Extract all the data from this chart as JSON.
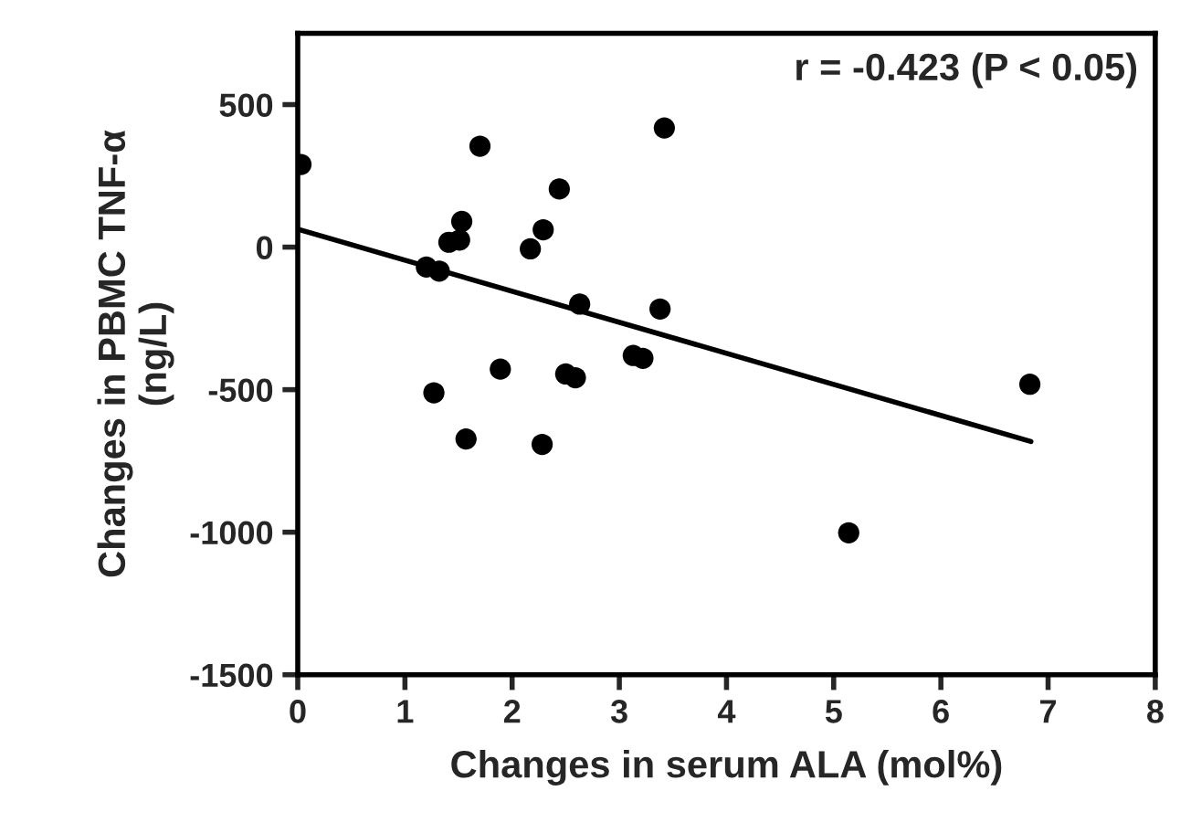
{
  "chart_data": {
    "type": "scatter",
    "xlabel": "Changes in serum ALA (mol%)",
    "ylabel": "Changes in PBMC TNF-α\n(ng/L)",
    "xlim": [
      0,
      8
    ],
    "xticks": [
      0,
      1,
      2,
      3,
      4,
      5,
      6,
      7,
      8
    ],
    "ylim": [
      -1500,
      750
    ],
    "yticks": [
      -1500,
      -1000,
      -500,
      0,
      500
    ],
    "grid": false,
    "marker": "circle",
    "annotations": [
      {
        "text": "r = -0.423 (P < 0.05)"
      }
    ],
    "series": [
      {
        "color": "#000000",
        "x": [
          0.03,
          1.7,
          3.42,
          2.44,
          1.53,
          1.41,
          1.51,
          2.29,
          2.17,
          1.2,
          1.32,
          2.63,
          3.38,
          3.13,
          3.22,
          1.89,
          2.5,
          2.59,
          1.27,
          1.57,
          2.28,
          6.83,
          5.14
        ],
        "values": [
          290,
          354,
          418,
          204,
          90,
          17,
          25,
          61,
          -6,
          -70,
          -84,
          -200,
          -217,
          -380,
          -390,
          -428,
          -445,
          -458,
          -511,
          -673,
          -692,
          -481,
          -1002
        ]
      },
      {
        "type": "line",
        "color": "#000000",
        "x": [
          0,
          6.84
        ],
        "values": [
          63,
          -682
        ],
        "line_style": "solid",
        "marker": "none"
      }
    ]
  }
}
